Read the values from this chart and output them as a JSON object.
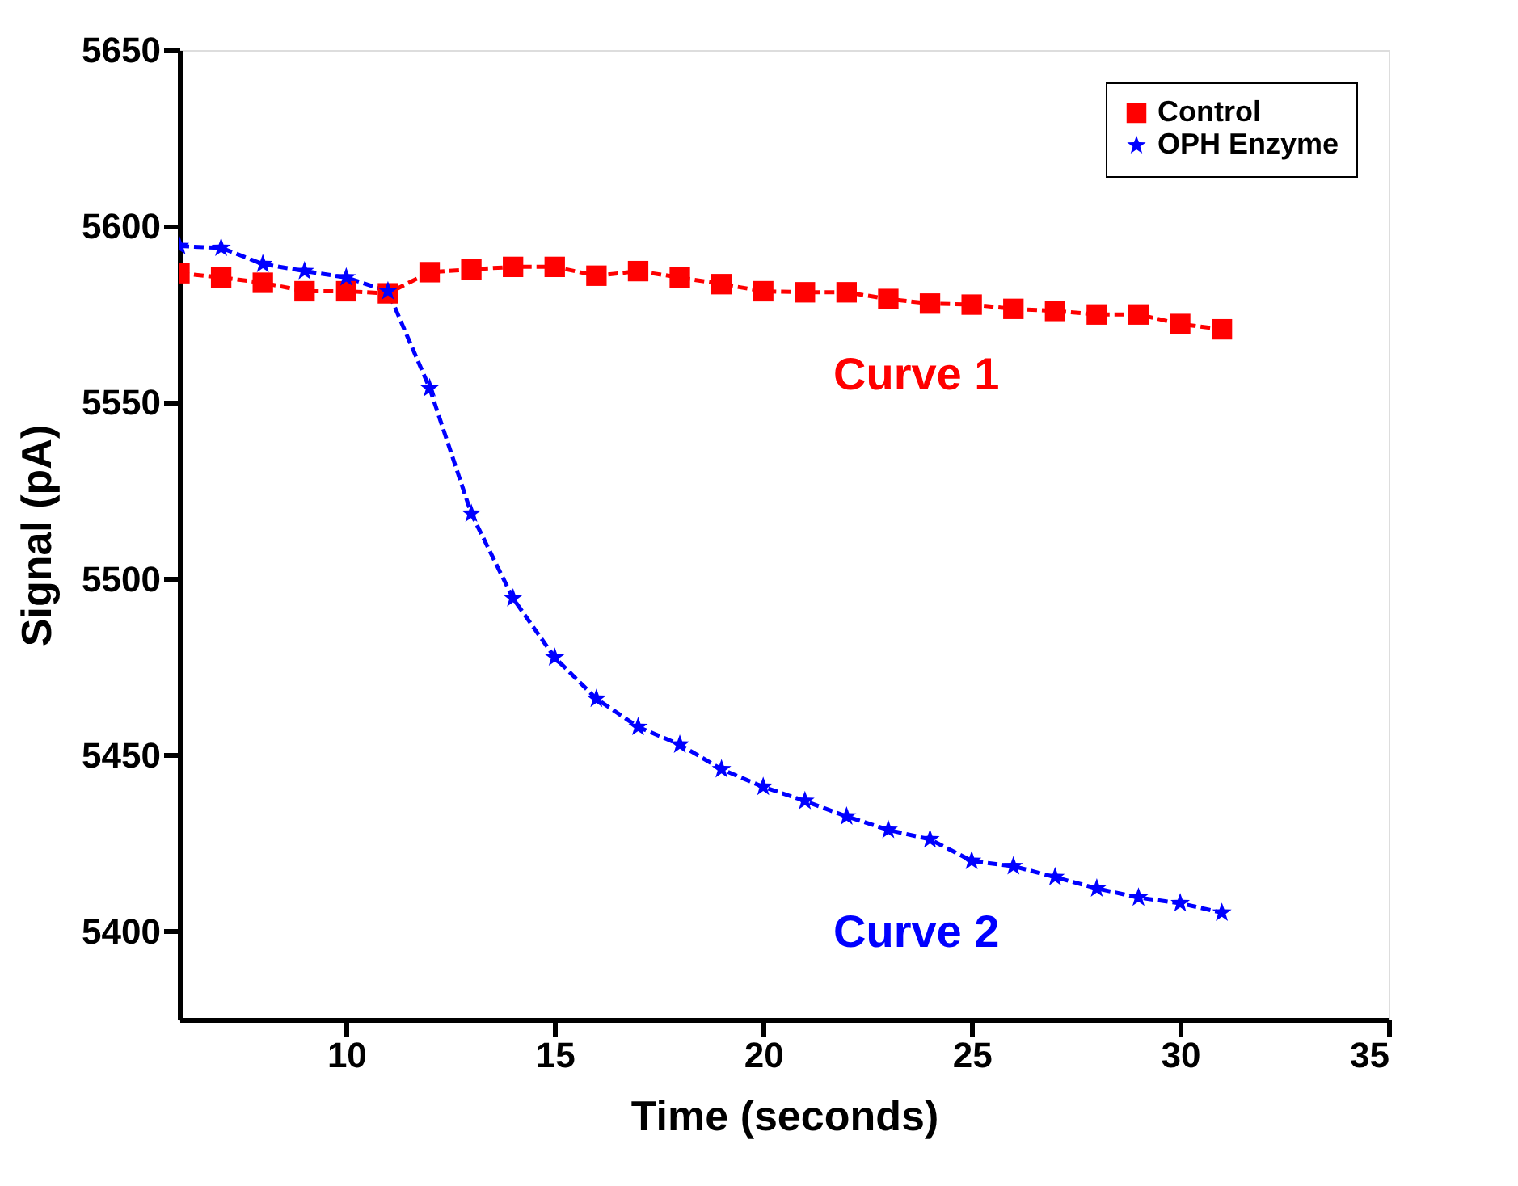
{
  "chart_data": {
    "type": "line",
    "xlabel": "Time (seconds)",
    "ylabel": "Signal (pA)",
    "xlim": [
      6,
      35
    ],
    "xticks": [
      10,
      15,
      20,
      25,
      30,
      35
    ],
    "ylim": [
      5375,
      5650
    ],
    "yticks": [
      5400,
      5450,
      5500,
      5550,
      5600,
      5650
    ],
    "grid": false,
    "legend": "top right",
    "line_style": "dashed",
    "x": [
      6,
      7,
      8,
      9,
      10,
      11,
      12,
      13,
      14,
      15,
      16,
      17,
      18,
      19,
      20,
      21,
      22,
      23,
      24,
      25,
      26,
      27,
      28,
      29,
      30,
      31
    ],
    "series": [
      {
        "name": "Control",
        "color": "#ff0000",
        "marker": "square",
        "values": [
          5586.7,
          5585.5,
          5584,
          5581.6,
          5581.6,
          5581,
          5587,
          5587.8,
          5588.5,
          5588.5,
          5586,
          5587.3,
          5585.5,
          5583.6,
          5581.6,
          5581.3,
          5581.3,
          5579.4,
          5578.1,
          5577.8,
          5576.6,
          5576,
          5575,
          5575,
          5572.3,
          5570.8
        ]
      },
      {
        "name": "OPH Enzyme",
        "color": "#0000ff",
        "marker": "star",
        "values": [
          5594.4,
          5593.9,
          5589.3,
          5587.3,
          5585.5,
          5581.6,
          5554.1,
          5518.5,
          5494.5,
          5477.7,
          5466,
          5458,
          5453,
          5446,
          5441,
          5437,
          5432.6,
          5428.8,
          5426.1,
          5420,
          5418.5,
          5415.4,
          5412.2,
          5409.6,
          5408,
          5405.3
        ]
      }
    ],
    "annotations": [
      "Curve 1",
      "Curve 2"
    ]
  }
}
